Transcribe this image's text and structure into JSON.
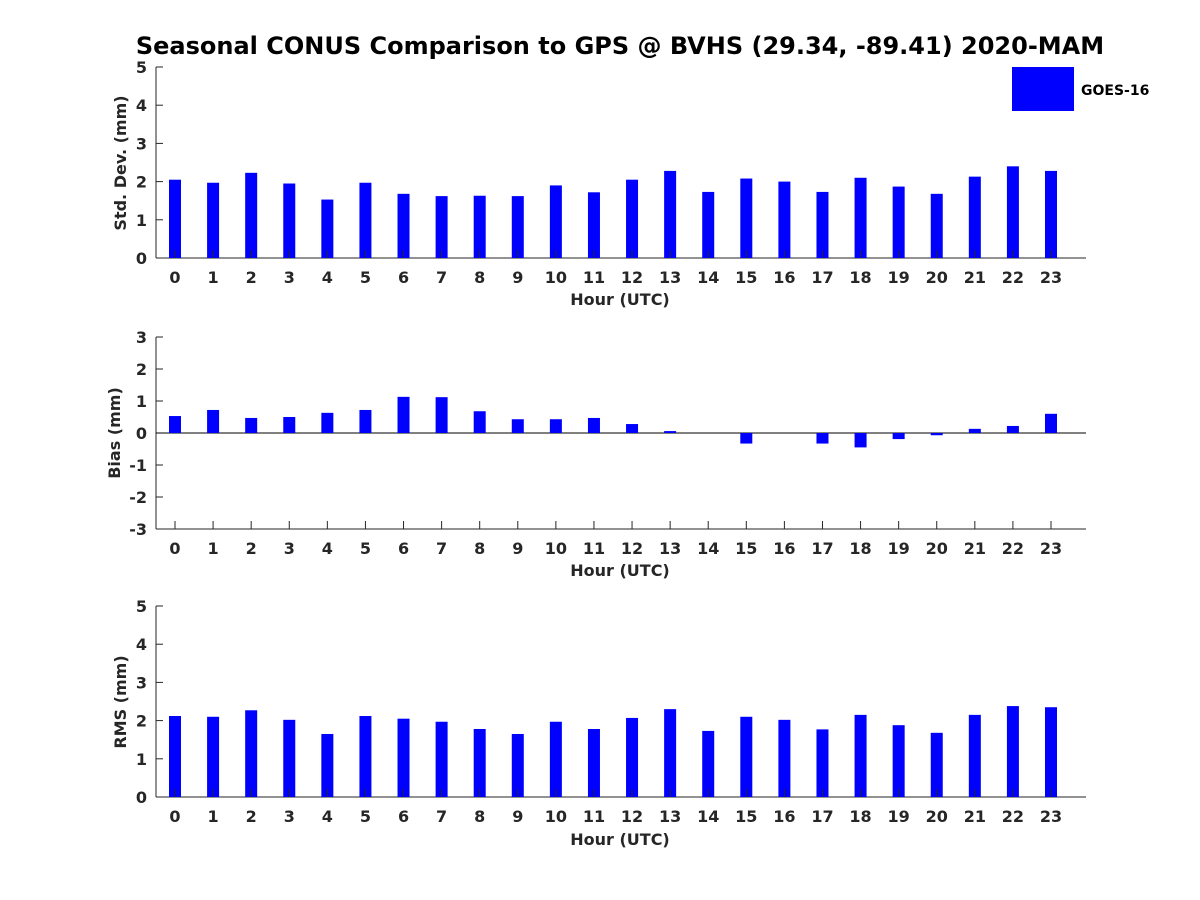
{
  "chart_data": {
    "type": "bar",
    "title": "Seasonal CONUS Comparison to GPS @ BVHS (29.34, -89.41) 2020-MAM",
    "legend": {
      "entries": [
        "GOES-16"
      ],
      "placement": "top-right",
      "color": "#0000ff"
    },
    "bar_color": "#0000ff",
    "categories": [
      "0",
      "1",
      "2",
      "3",
      "4",
      "5",
      "6",
      "7",
      "8",
      "9",
      "10",
      "11",
      "12",
      "13",
      "14",
      "15",
      "16",
      "17",
      "18",
      "19",
      "20",
      "21",
      "22",
      "23"
    ],
    "panels": [
      {
        "id": "std",
        "ylabel": "Std. Dev. (mm)",
        "xlabel": "Hour (UTC)",
        "ylim": [
          0,
          5
        ],
        "yticks": [
          "0",
          "1",
          "2",
          "3",
          "4",
          "5"
        ],
        "values": [
          2.05,
          1.97,
          2.23,
          1.95,
          1.53,
          1.97,
          1.68,
          1.62,
          1.63,
          1.62,
          1.9,
          1.72,
          2.05,
          2.28,
          1.73,
          2.08,
          2.0,
          1.73,
          2.1,
          1.87,
          1.68,
          2.13,
          2.4,
          2.28
        ]
      },
      {
        "id": "bias",
        "ylabel": "Bias (mm)",
        "xlabel": "Hour (UTC)",
        "ylim": [
          -3,
          3
        ],
        "yticks": [
          "-3",
          "-2",
          "-1",
          "0",
          "1",
          "2",
          "3"
        ],
        "values": [
          0.53,
          0.72,
          0.47,
          0.5,
          0.63,
          0.72,
          1.13,
          1.12,
          0.68,
          0.43,
          0.43,
          0.47,
          0.28,
          0.06,
          0.0,
          -0.33,
          0.0,
          -0.33,
          -0.45,
          -0.19,
          -0.07,
          0.13,
          0.22,
          0.6
        ]
      },
      {
        "id": "rms",
        "ylabel": "RMS (mm)",
        "xlabel": "Hour (UTC)",
        "ylim": [
          0,
          5
        ],
        "yticks": [
          "0",
          "1",
          "2",
          "3",
          "4",
          "5"
        ],
        "values": [
          2.12,
          2.1,
          2.27,
          2.02,
          1.65,
          2.12,
          2.05,
          1.97,
          1.78,
          1.65,
          1.97,
          1.78,
          2.07,
          2.3,
          1.73,
          2.1,
          2.02,
          1.77,
          2.15,
          1.88,
          1.68,
          2.15,
          2.38,
          2.35
        ]
      }
    ]
  }
}
